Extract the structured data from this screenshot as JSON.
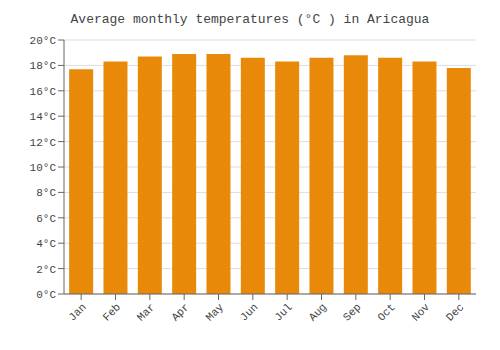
{
  "chart_data": {
    "type": "bar",
    "title": "Average monthly temperatures (°C ) in Aricagua",
    "categories": [
      "Jan",
      "Feb",
      "Mar",
      "Apr",
      "May",
      "Jun",
      "Jul",
      "Aug",
      "Sep",
      "Oct",
      "Nov",
      "Dec"
    ],
    "values": [
      17.7,
      18.3,
      18.7,
      18.9,
      18.9,
      18.6,
      18.3,
      18.6,
      18.8,
      18.6,
      18.3,
      17.8
    ],
    "color": "#E8890A",
    "ylim": [
      0,
      20
    ],
    "yticks": [
      {
        "value": 0,
        "label": "0°C"
      },
      {
        "value": 2,
        "label": "2°C"
      },
      {
        "value": 4,
        "label": "4°C"
      },
      {
        "value": 6,
        "label": "6°C"
      },
      {
        "value": 8,
        "label": "8°C"
      },
      {
        "value": 10,
        "label": "10°C"
      },
      {
        "value": 12,
        "label": "12°C"
      },
      {
        "value": 14,
        "label": "14°C"
      },
      {
        "value": 16,
        "label": "16°C"
      },
      {
        "value": 18,
        "label": "18°C"
      },
      {
        "value": 20,
        "label": "20°C"
      }
    ],
    "grid": true
  }
}
